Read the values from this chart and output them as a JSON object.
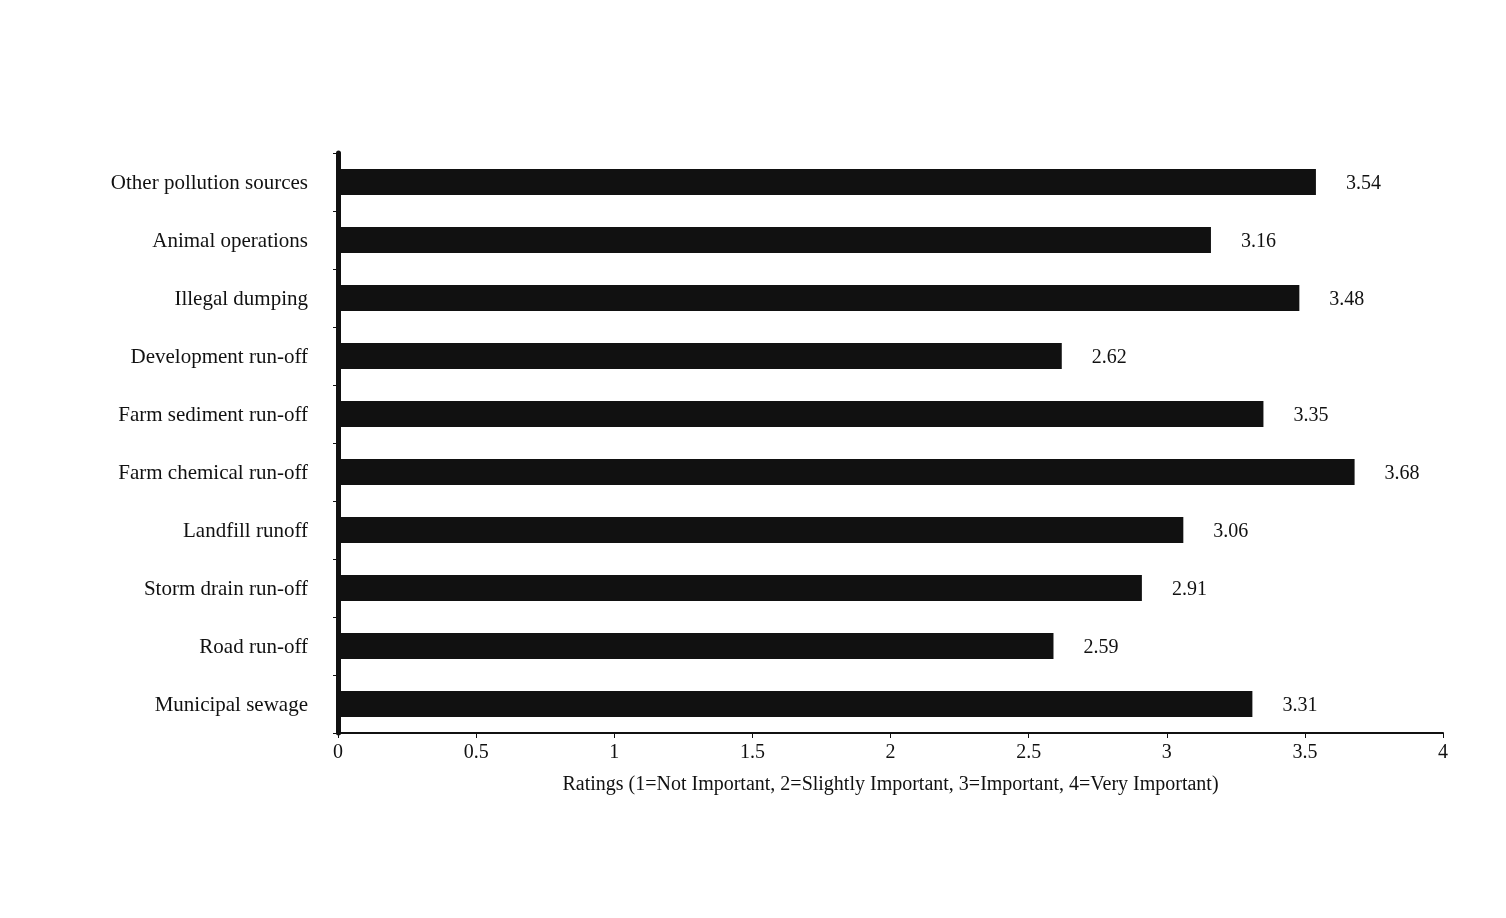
{
  "chart_data": {
    "type": "bar",
    "orientation": "horizontal",
    "xlabel": "Ratings (1=Not Important, 2=Slightly Important, 3=Important, 4=Very Important)",
    "categories": [
      "Other pollution sources",
      "Animal operations",
      "Illegal dumping",
      "Development run-off",
      "Farm sediment run-off",
      "Farm chemical run-off",
      "Landfill runoff",
      "Storm drain run-off",
      "Road run-off",
      "Municipal sewage"
    ],
    "values": [
      3.54,
      3.16,
      3.48,
      2.62,
      3.35,
      3.68,
      3.06,
      2.91,
      2.59,
      3.31
    ],
    "color": "#111111",
    "xlim": [
      0,
      4
    ],
    "xticks": [
      0,
      0.5,
      1,
      1.5,
      2,
      2.5,
      3,
      3.5,
      4
    ],
    "grid": false,
    "data_labels": true
  }
}
